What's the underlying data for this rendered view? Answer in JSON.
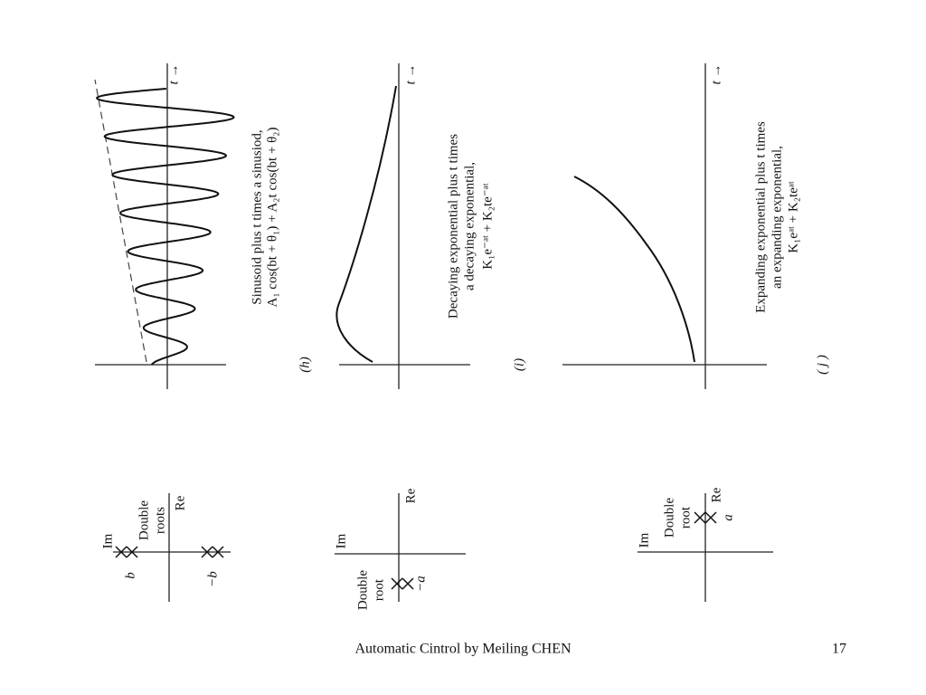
{
  "panels": [
    {
      "caption": [
        "Sinusoid plus t times a sinusiod,",
        "A₁ cos(bt + θ₁) + A₂t cos(bt + θ₂)"
      ],
      "label": "(h)",
      "t_label": "t →",
      "pole_plot": {
        "im": "Im",
        "re": "Re",
        "root_note": [
          "Double",
          "roots"
        ],
        "root_labels": [
          "b",
          "−b"
        ]
      }
    },
    {
      "caption": [
        "Decaying exponential plus t times",
        "a decaying exponential,",
        "K₁e⁻ᵃᵗ + K₂te⁻ᵃᵗ"
      ],
      "label": "(i)",
      "t_label": "t →",
      "pole_plot": {
        "im": "Im",
        "re": "Re",
        "root_note": [
          "Double",
          "root"
        ],
        "root_labels": [
          "−a"
        ]
      }
    },
    {
      "caption": [
        "Expanding exponential plus t times",
        "an expanding exponential,",
        "K₁eᵃᵗ + K₂teᵃᵗ"
      ],
      "label": "( j )",
      "t_label": "t →",
      "pole_plot": {
        "im": "Im",
        "re": "Re",
        "root_note": [
          "Double",
          "root"
        ],
        "root_labels": [
          "a"
        ]
      }
    }
  ],
  "footer": {
    "text": "Automatic Cintrol by Meiling CHEN",
    "page": "17"
  }
}
